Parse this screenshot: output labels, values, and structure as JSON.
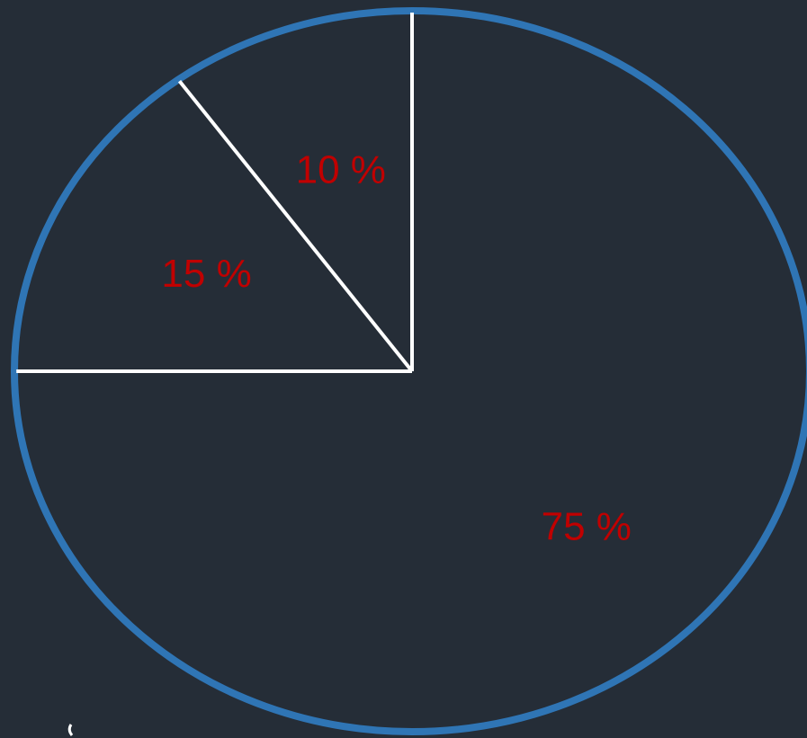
{
  "colors": {
    "background": "#252d37",
    "outline": "#2f75b5",
    "divider": "#ffffff",
    "label": "#c00000"
  },
  "chart_data": {
    "type": "pie",
    "start": "top",
    "direction": "counterclockwise",
    "slices": [
      {
        "value": 10,
        "label": "10 %"
      },
      {
        "value": 15,
        "label": "15 %"
      },
      {
        "value": 75,
        "label": "75 %"
      }
    ]
  }
}
